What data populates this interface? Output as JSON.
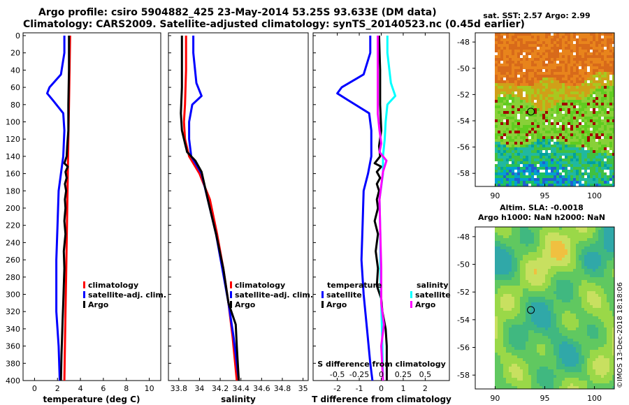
{
  "header": {
    "title_line1": "Argo profile: csiro 5904882_425 23-May-2014 53.25S 93.633E (DM data)",
    "title_line2": "Climatology: CARS2009. Satellite-adjusted climatology: synTS_20140523.nc (0.45d earlier)"
  },
  "colors": {
    "climatology": "#ff0000",
    "satellite": "#0000ff",
    "argo": "#000000",
    "sal_satellite": "#00ffff",
    "sal_argo": "#ff00ff"
  },
  "chart_data": [
    {
      "type": "line",
      "panel": "temperature",
      "xlabel": "temperature (deg C)",
      "ylabel": "",
      "xlim": [
        -1,
        11
      ],
      "ylim": [
        400,
        0
      ],
      "xticks": [
        0,
        2,
        4,
        6,
        8,
        10
      ],
      "yticks": [
        0,
        20,
        40,
        60,
        80,
        100,
        120,
        140,
        160,
        180,
        200,
        220,
        240,
        260,
        280,
        300,
        320,
        340,
        360,
        380,
        400
      ],
      "legend": [
        "climatology",
        "satellite-adj. clim.",
        "Argo"
      ],
      "legend_position": "lower-right",
      "series": [
        {
          "name": "climatology",
          "color_key": "climatology",
          "points": [
            [
              3.1,
              0
            ],
            [
              3.05,
              40
            ],
            [
              3.0,
              80
            ],
            [
              2.95,
              120
            ],
            [
              2.9,
              160
            ],
            [
              2.85,
              200
            ],
            [
              2.8,
              240
            ],
            [
              2.75,
              280
            ],
            [
              2.7,
              320
            ],
            [
              2.65,
              360
            ],
            [
              2.6,
              400
            ]
          ]
        },
        {
          "name": "satellite-adj. clim.",
          "color_key": "satellite",
          "points": [
            [
              2.6,
              0
            ],
            [
              2.6,
              20
            ],
            [
              2.3,
              45
            ],
            [
              1.3,
              60
            ],
            [
              1.1,
              67
            ],
            [
              1.6,
              75
            ],
            [
              2.5,
              90
            ],
            [
              2.6,
              110
            ],
            [
              2.5,
              140
            ],
            [
              2.3,
              160
            ],
            [
              2.1,
              180
            ],
            [
              2.0,
              220
            ],
            [
              1.9,
              260
            ],
            [
              1.9,
              320
            ],
            [
              2.1,
              360
            ],
            [
              2.2,
              400
            ]
          ]
        },
        {
          "name": "Argo",
          "color_key": "argo",
          "points": [
            [
              3.0,
              0
            ],
            [
              3.0,
              40
            ],
            [
              2.95,
              80
            ],
            [
              2.95,
              110
            ],
            [
              2.85,
              128
            ],
            [
              2.8,
              140
            ],
            [
              2.6,
              148
            ],
            [
              2.9,
              152
            ],
            [
              2.7,
              158
            ],
            [
              2.8,
              165
            ],
            [
              2.65,
              172
            ],
            [
              2.75,
              180
            ],
            [
              2.65,
              190
            ],
            [
              2.7,
              200
            ],
            [
              2.6,
              215
            ],
            [
              2.7,
              230
            ],
            [
              2.55,
              250
            ],
            [
              2.6,
              270
            ],
            [
              2.55,
              290
            ],
            [
              2.5,
              310
            ],
            [
              2.45,
              330
            ],
            [
              2.4,
              350
            ],
            [
              2.35,
              370
            ],
            [
              2.3,
              400
            ]
          ]
        }
      ]
    },
    {
      "type": "line",
      "panel": "salinity",
      "xlabel": "salinity",
      "ylabel": "",
      "xlim": [
        33.7,
        35.05
      ],
      "ylim": [
        400,
        0
      ],
      "xticks": [
        33.8,
        34,
        34.2,
        34.4,
        34.6,
        34.8,
        35
      ],
      "xtick_labels": [
        "33.8",
        "34",
        "34.2",
        "34.4",
        "34.6",
        "34.8",
        "35"
      ],
      "legend": [
        "climatology",
        "satellite-adj. clim.",
        "Argo"
      ],
      "legend_position": "lower-right",
      "series": [
        {
          "name": "climatology",
          "color_key": "climatology",
          "points": [
            [
              33.87,
              0
            ],
            [
              33.87,
              40
            ],
            [
              33.86,
              80
            ],
            [
              33.85,
              100
            ],
            [
              33.86,
              120
            ],
            [
              33.9,
              140
            ],
            [
              34.0,
              160
            ],
            [
              34.1,
              190
            ],
            [
              34.17,
              230
            ],
            [
              34.23,
              270
            ],
            [
              34.28,
              310
            ],
            [
              34.32,
              350
            ],
            [
              34.36,
              400
            ]
          ]
        },
        {
          "name": "satellite-adj. clim.",
          "color_key": "satellite",
          "points": [
            [
              33.94,
              0
            ],
            [
              33.94,
              20
            ],
            [
              33.97,
              55
            ],
            [
              34.02,
              70
            ],
            [
              33.93,
              80
            ],
            [
              33.9,
              100
            ],
            [
              33.9,
              120
            ],
            [
              33.92,
              140
            ],
            [
              34.02,
              160
            ],
            [
              34.08,
              190
            ],
            [
              34.16,
              230
            ],
            [
              34.22,
              270
            ],
            [
              34.28,
              310
            ],
            [
              34.33,
              350
            ],
            [
              34.38,
              400
            ]
          ]
        },
        {
          "name": "Argo",
          "color_key": "argo",
          "points": [
            [
              33.83,
              0
            ],
            [
              33.83,
              60
            ],
            [
              33.82,
              90
            ],
            [
              33.83,
              110
            ],
            [
              33.86,
              125
            ],
            [
              33.88,
              135
            ],
            [
              33.96,
              145
            ],
            [
              34.02,
              158
            ],
            [
              34.08,
              190
            ],
            [
              34.16,
              230
            ],
            [
              34.23,
              270
            ],
            [
              34.28,
              310
            ],
            [
              34.35,
              335
            ],
            [
              34.36,
              360
            ],
            [
              34.38,
              400
            ]
          ]
        }
      ]
    },
    {
      "type": "line",
      "panel": "difference",
      "xlabel": "T difference from climatology",
      "top_axis_label": "S difference  from climatology",
      "xlim": [
        -3.1,
        3.1
      ],
      "top_xlim": [
        -0.775,
        0.775
      ],
      "ylim": [
        400,
        0
      ],
      "xticks": [
        -2,
        -1,
        0,
        1,
        2
      ],
      "xtick_labels": [
        "-2",
        "-1",
        "0",
        "1",
        "2"
      ],
      "top_xticks": [
        -0.5,
        -0.25,
        0,
        0.25,
        0.5
      ],
      "top_xtick_labels": [
        "-0.5",
        "-0.25",
        "0",
        "0.25",
        "0.5"
      ],
      "legend_temperature_heading": "temperature",
      "legend_salinity_heading": "salinity",
      "legend": [
        "satellite",
        "Argo",
        "satellite",
        "Argo"
      ],
      "series": [
        {
          "name": "T satellite",
          "color_key": "satellite",
          "axis": "T",
          "points": [
            [
              -0.5,
              0
            ],
            [
              -0.5,
              20
            ],
            [
              -0.8,
              45
            ],
            [
              -1.8,
              60
            ],
            [
              -2.0,
              67
            ],
            [
              -1.5,
              75
            ],
            [
              -0.55,
              90
            ],
            [
              -0.45,
              110
            ],
            [
              -0.45,
              140
            ],
            [
              -0.6,
              160
            ],
            [
              -0.8,
              180
            ],
            [
              -0.85,
              220
            ],
            [
              -0.9,
              260
            ],
            [
              -0.8,
              300
            ],
            [
              -0.65,
              340
            ],
            [
              -0.5,
              380
            ],
            [
              -0.4,
              400
            ]
          ]
        },
        {
          "name": "T Argo",
          "color_key": "argo",
          "axis": "T",
          "points": [
            [
              -0.1,
              0
            ],
            [
              -0.05,
              40
            ],
            [
              -0.05,
              80
            ],
            [
              0.0,
              110
            ],
            [
              -0.1,
              128
            ],
            [
              -0.05,
              140
            ],
            [
              -0.3,
              148
            ],
            [
              0.0,
              152
            ],
            [
              -0.2,
              158
            ],
            [
              -0.05,
              165
            ],
            [
              -0.2,
              172
            ],
            [
              -0.1,
              180
            ],
            [
              -0.2,
              190
            ],
            [
              -0.15,
              200
            ],
            [
              -0.3,
              215
            ],
            [
              -0.15,
              230
            ],
            [
              -0.25,
              250
            ],
            [
              -0.15,
              270
            ],
            [
              -0.2,
              290
            ],
            [
              0.0,
              305
            ],
            [
              0.05,
              320
            ],
            [
              0.2,
              340
            ],
            [
              0.25,
              360
            ],
            [
              0.25,
              400
            ]
          ]
        },
        {
          "name": "S satellite",
          "color_key": "sal_satellite",
          "axis": "S",
          "points": [
            [
              0.07,
              0
            ],
            [
              0.07,
              20
            ],
            [
              0.11,
              55
            ],
            [
              0.16,
              70
            ],
            [
              0.07,
              80
            ],
            [
              0.05,
              100
            ],
            [
              0.04,
              120
            ],
            [
              0.02,
              140
            ],
            [
              0.02,
              160
            ],
            [
              -0.02,
              190
            ],
            [
              -0.01,
              230
            ],
            [
              -0.01,
              270
            ],
            [
              0.0,
              310
            ],
            [
              0.01,
              350
            ],
            [
              0.02,
              400
            ]
          ]
        },
        {
          "name": "S Argo",
          "color_key": "sal_argo",
          "axis": "S",
          "points": [
            [
              -0.04,
              0
            ],
            [
              -0.04,
              60
            ],
            [
              -0.04,
              90
            ],
            [
              -0.02,
              110
            ],
            [
              0.0,
              125
            ],
            [
              -0.02,
              135
            ],
            [
              0.06,
              145
            ],
            [
              0.02,
              158
            ],
            [
              -0.02,
              190
            ],
            [
              -0.01,
              230
            ],
            [
              0.0,
              270
            ],
            [
              0.0,
              310
            ],
            [
              0.03,
              335
            ],
            [
              0.0,
              360
            ],
            [
              0.02,
              400
            ]
          ]
        }
      ]
    },
    {
      "type": "heatmap",
      "panel": "sst_map",
      "title": "sat. SST: 2.57 Argo: 2.99",
      "xlim": [
        88,
        102
      ],
      "ylim": [
        -59,
        -47.3
      ],
      "xticks": [
        90,
        95,
        100
      ],
      "yticks": [
        -48,
        -50,
        -52,
        -54,
        -56,
        -58
      ],
      "profile_position": [
        93.6,
        -53.3
      ]
    },
    {
      "type": "heatmap",
      "panel": "sla_map",
      "title_line1": "Altim. SLA: -0.0018",
      "title_line2": "Argo h1000: NaN h2000: NaN",
      "xlim": [
        88,
        102
      ],
      "ylim": [
        -59,
        -47.3
      ],
      "xticks": [
        90,
        95,
        100
      ],
      "yticks": [
        -48,
        -50,
        -52,
        -54,
        -56,
        -58
      ],
      "profile_position": [
        93.6,
        -53.3
      ]
    }
  ],
  "footer": {
    "stamp": "©IMOS 13-Dec-2018 18:18:06"
  }
}
